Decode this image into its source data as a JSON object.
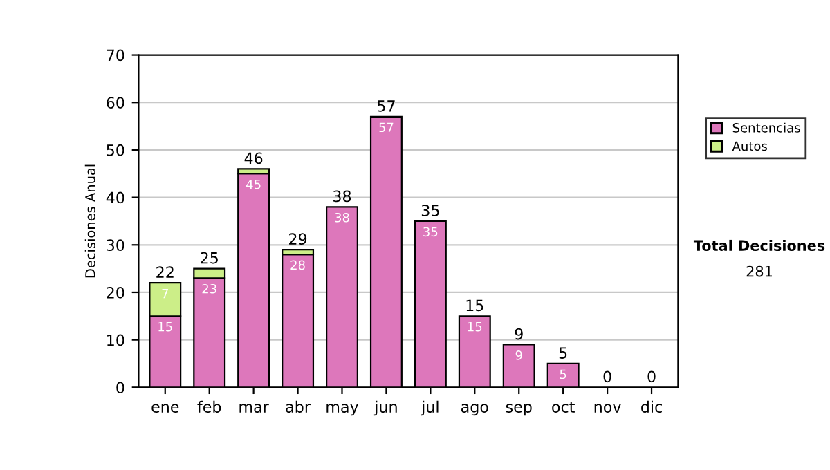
{
  "chart_data": {
    "type": "bar",
    "ylabel": "Decisiones Anual",
    "stacked": true,
    "categories": [
      "ene",
      "feb",
      "mar",
      "abr",
      "may",
      "jun",
      "jul",
      "ago",
      "sep",
      "oct",
      "nov",
      "dic"
    ],
    "series": [
      {
        "name": "Sentencias",
        "color": "#dd77bb",
        "values": [
          15,
          23,
          45,
          28,
          38,
          57,
          35,
          15,
          9,
          5,
          0,
          0
        ],
        "value_labels": [
          "15",
          "23",
          "45",
          "28",
          "38",
          "57",
          "35",
          "15",
          "9",
          "5",
          null,
          null
        ]
      },
      {
        "name": "Autos",
        "color": "#ccee88",
        "values": [
          7,
          2,
          1,
          1,
          0,
          0,
          0,
          0,
          0,
          0,
          0,
          0
        ],
        "value_labels": [
          "7",
          null,
          null,
          null,
          null,
          null,
          null,
          null,
          null,
          null,
          null,
          null
        ]
      }
    ],
    "totals": [
      "22",
      "25",
      "46",
      "29",
      "38",
      "57",
      "35",
      "15",
      "9",
      "5",
      "0",
      "0"
    ],
    "ylim": [
      0,
      70
    ],
    "yticks": [
      0,
      10,
      20,
      30,
      40,
      50,
      60,
      70
    ],
    "grid": "y",
    "legend": "right",
    "annotations": [
      "Total Decisiones",
      "281"
    ]
  }
}
